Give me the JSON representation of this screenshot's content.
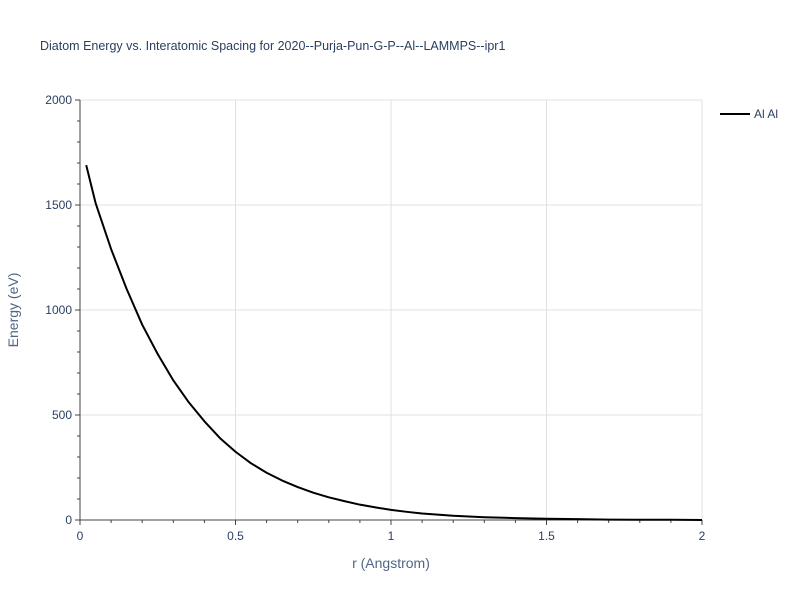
{
  "chart_data": {
    "type": "line",
    "title": "Diatom Energy vs. Interatomic Spacing for 2020--Purja-Pun-G-P--Al--LAMMPS--ipr1",
    "xlabel": "r (Angstrom)",
    "ylabel": "Energy (eV)",
    "xlim": [
      0,
      2
    ],
    "ylim": [
      0,
      2000
    ],
    "xticks": [
      0,
      0.5,
      1,
      1.5,
      2
    ],
    "xtick_labels": [
      "0",
      "0.5",
      "1",
      "1.5",
      "2"
    ],
    "yticks": [
      0,
      500,
      1000,
      1500,
      2000
    ],
    "ytick_labels": [
      "0",
      "500",
      "1000",
      "1500",
      "2000"
    ],
    "grid": true,
    "legend_position": "top-right",
    "series": [
      {
        "name": "Al Al",
        "color": "#000000",
        "x": [
          0.02,
          0.05,
          0.1,
          0.15,
          0.2,
          0.25,
          0.3,
          0.35,
          0.4,
          0.45,
          0.5,
          0.55,
          0.6,
          0.65,
          0.7,
          0.75,
          0.8,
          0.85,
          0.9,
          0.95,
          1.0,
          1.05,
          1.1,
          1.2,
          1.3,
          1.4,
          1.5,
          1.6,
          1.7,
          1.8,
          1.9,
          2.0
        ],
        "y": [
          1690,
          1510,
          1290,
          1100,
          930,
          790,
          665,
          560,
          470,
          390,
          325,
          270,
          225,
          188,
          157,
          130,
          108,
          90,
          73,
          60,
          48,
          39,
          31,
          20,
          13,
          9,
          6,
          4,
          2,
          1,
          1,
          0
        ]
      }
    ]
  }
}
